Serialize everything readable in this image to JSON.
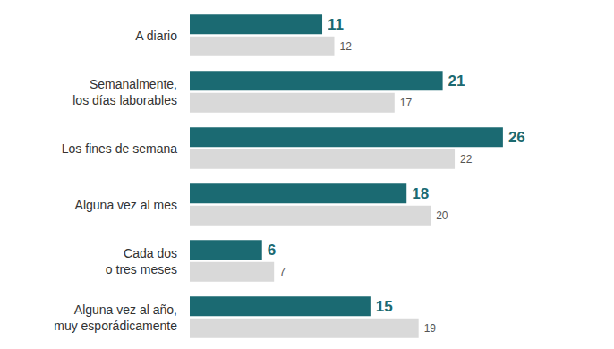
{
  "chart_data": {
    "type": "bar",
    "orientation": "horizontal",
    "categories": [
      "A diario",
      "Semanalmente,\nlos días laborables",
      "Los fines de semana",
      "Alguna vez al mes",
      "Cada dos\no tres meses",
      "Alguna vez al año,\nmuy esporádicamente"
    ],
    "series": [
      {
        "color": "#1b6a72",
        "values": [
          11,
          21,
          26,
          18,
          6,
          15
        ]
      },
      {
        "color": "#d9d9d9",
        "values": [
          12,
          17,
          22,
          20,
          7,
          19
        ]
      }
    ],
    "xlim": [
      0,
      35
    ],
    "grid": false,
    "tick_labels": false,
    "data_labels": true
  }
}
